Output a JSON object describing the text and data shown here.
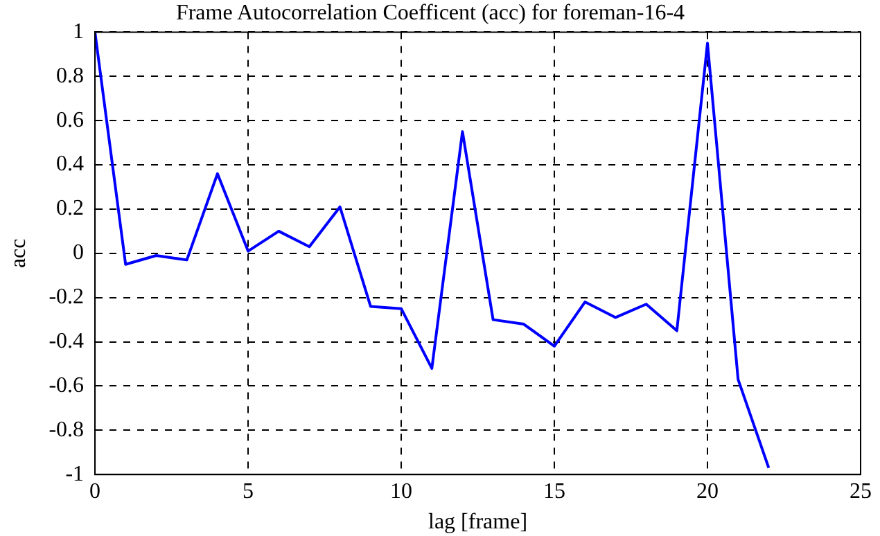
{
  "chart_data": {
    "type": "line",
    "title": "Frame Autocorrelation Coefficent (acc) for foreman-16-4",
    "xlabel": "lag [frame]",
    "ylabel": "acc",
    "x": [
      0,
      1,
      2,
      3,
      4,
      5,
      6,
      7,
      8,
      9,
      10,
      11,
      12,
      13,
      14,
      15,
      16,
      17,
      18,
      19,
      20,
      21,
      22
    ],
    "series": [
      {
        "color": "#0000ff",
        "values": [
          1.0,
          -0.05,
          -0.01,
          -0.03,
          0.36,
          0.01,
          0.1,
          0.03,
          0.21,
          -0.24,
          -0.25,
          -0.52,
          0.55,
          -0.3,
          -0.32,
          -0.42,
          -0.22,
          -0.29,
          -0.23,
          -0.35,
          0.95,
          -0.57,
          -0.97
        ]
      }
    ],
    "xlim": [
      0,
      25
    ],
    "xticks": [
      0,
      5,
      10,
      15,
      20,
      25
    ],
    "ylim": [
      -1,
      1
    ],
    "yticks": [
      -1,
      -0.8,
      -0.6,
      -0.4,
      -0.2,
      0,
      0.2,
      0.4,
      0.6,
      0.8,
      1
    ],
    "grid": true,
    "legend": false,
    "marker": "none",
    "line_style": "solid"
  }
}
